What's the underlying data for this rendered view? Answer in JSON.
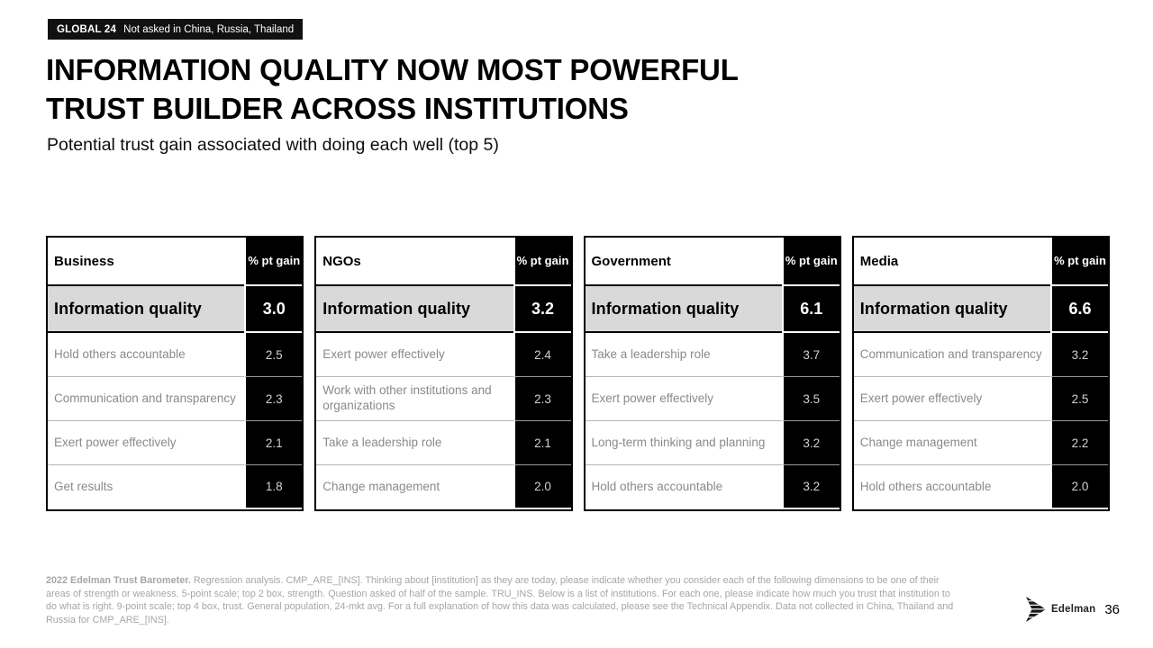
{
  "badge": {
    "label": "GLOBAL 24",
    "note": "Not asked in China, Russia, Thailand"
  },
  "title_line1": "INFORMATION QUALITY NOW MOST POWERFUL",
  "title_line2": "TRUST BUILDER ACROSS INSTITUTIONS",
  "subtitle": "Potential trust gain associated with doing each well (top 5)",
  "value_column_header": "% pt gain",
  "chart_data": [
    {
      "type": "table",
      "institution": "Business",
      "columns": [
        "Business",
        "% pt gain"
      ],
      "rows": [
        {
          "label": "Information quality",
          "value": 3.0,
          "highlight": true
        },
        {
          "label": "Hold others accountable",
          "value": 2.5
        },
        {
          "label": "Communication and transparency",
          "value": 2.3
        },
        {
          "label": "Exert power effectively",
          "value": 2.1
        },
        {
          "label": "Get results",
          "value": 1.8
        }
      ]
    },
    {
      "type": "table",
      "institution": "NGOs",
      "columns": [
        "NGOs",
        "% pt gain"
      ],
      "rows": [
        {
          "label": "Information quality",
          "value": 3.2,
          "highlight": true
        },
        {
          "label": "Exert power effectively",
          "value": 2.4
        },
        {
          "label": "Work with other institutions and organizations",
          "value": 2.3
        },
        {
          "label": "Take a leadership role",
          "value": 2.1
        },
        {
          "label": "Change management",
          "value": 2.0
        }
      ]
    },
    {
      "type": "table",
      "institution": "Government",
      "columns": [
        "Government",
        "% pt gain"
      ],
      "rows": [
        {
          "label": "Information quality",
          "value": 6.1,
          "highlight": true
        },
        {
          "label": "Take a leadership role",
          "value": 3.7
        },
        {
          "label": "Exert power effectively",
          "value": 3.5
        },
        {
          "label": "Long-term thinking and planning",
          "value": 3.2
        },
        {
          "label": "Hold others accountable",
          "value": 3.2
        }
      ]
    },
    {
      "type": "table",
      "institution": "Media",
      "columns": [
        "Media",
        "% pt gain"
      ],
      "rows": [
        {
          "label": "Information quality",
          "value": 6.6,
          "highlight": true
        },
        {
          "label": "Communication and transparency",
          "value": 3.2
        },
        {
          "label": "Exert power effectively",
          "value": 2.5
        },
        {
          "label": "Change management",
          "value": 2.2
        },
        {
          "label": "Hold others accountable",
          "value": 2.0
        }
      ]
    }
  ],
  "footer": {
    "bold": "2022 Edelman Trust Barometer.",
    "text": " Regression analysis. CMP_ARE_[INS]. Thinking about [institution] as they are today, please indicate whether you consider each of the following dimensions to be one of their areas of strength or weakness. 5-point scale; top 2 box, strength. Question asked of half of the sample. TRU_INS. Below is a list of institutions. For each one, please indicate how much you trust that institution to do what is right. 9-point scale; top 4 box, trust. General population, 24-mkt avg. For a full explanation of how this data was calculated, please see the Technical Appendix. Data not collected in China, Thailand and Russia for CMP_ARE_[INS]."
  },
  "logo": {
    "text": "Edelman"
  },
  "page_number": "36",
  "colors": {
    "highlight_row_bg": "#d9d9d9",
    "value_column_bg": "#000000",
    "muted_label_text": "#8a8a8a",
    "muted_value_text": "#d2d2d2",
    "footer_text": "#a6a6a6",
    "badge_bg": "#111111"
  }
}
